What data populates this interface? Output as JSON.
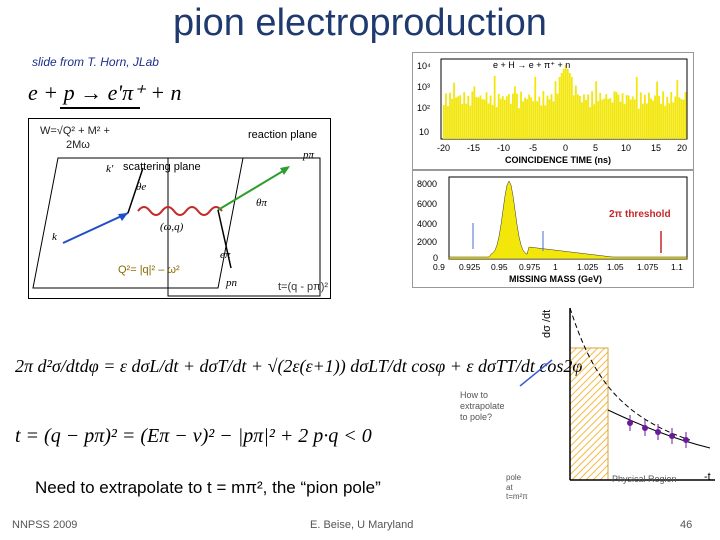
{
  "slide": {
    "title": "pion electroproduction",
    "credit": "slide from T. Horn, JLab",
    "reaction": "e + p → e'π⁺ + n",
    "footer_left": "NNPSS 2009",
    "footer_center": "E. Beise, U Maryland",
    "page_number": "46"
  },
  "kinematics": {
    "w_label_1": "W=√Q² + M² +",
    "w_label_2": "2Mω",
    "reaction_plane": "reaction plane",
    "scattering_plane": "scattering plane",
    "q2_label": "Q²= |q|² – ω²",
    "t_label": "t=(q - pπ)²",
    "theta_pi": "θπ",
    "theta_e": "θe",
    "photon": "(ω,q)",
    "k": "k",
    "k_prime": "k'",
    "p_n": "pn",
    "p_pi": "pπ",
    "e_pi": "eπ"
  },
  "coincidence_plot": {
    "reaction": "e + H → e + π⁺ + n",
    "xlabel": "COINCIDENCE TIME (ns)",
    "xticks": [
      "-20",
      "-15",
      "-10",
      "-5",
      "0",
      "5",
      "10",
      "15",
      "20"
    ],
    "yticks": [
      "10⁴",
      "10³",
      "10²",
      "10"
    ]
  },
  "missing_mass_plot": {
    "xlabel": "MISSING MASS (GeV)",
    "xticks": [
      "0.9",
      "0.925",
      "0.95",
      "0.975",
      "1",
      "1.025",
      "1.05",
      "1.075",
      "1.1"
    ],
    "yticks": [
      "8000",
      "6000",
      "4000",
      "2000",
      "0"
    ],
    "threshold_label": "2π threshold"
  },
  "extrapolation_plot": {
    "ylabel": "dσ /dt",
    "xlabel": "-t",
    "question": [
      "How to",
      "extrapolate",
      "to pole?"
    ],
    "pole": [
      "pole",
      "at",
      "t=m²π"
    ],
    "region": "Physical Region"
  },
  "equations": {
    "cross_section": "2π d²σ/dtdφ = ε dσL/dt + dσT/dt + √(2ε(ε+1)) dσLT/dt cosφ + ε dσTT/dt cos2φ",
    "t_definition": "t = (q − pπ)² = (Eπ − ν)² − |pπ|² + 2 p·q < 0"
  },
  "footnote": "Need to extrapolate to t = mπ², the “pion pole”",
  "colors": {
    "title": "#1f3a6e",
    "histogram": "#f2e60a",
    "hatched": "#f7c64a",
    "points": "#6a1b9a"
  }
}
